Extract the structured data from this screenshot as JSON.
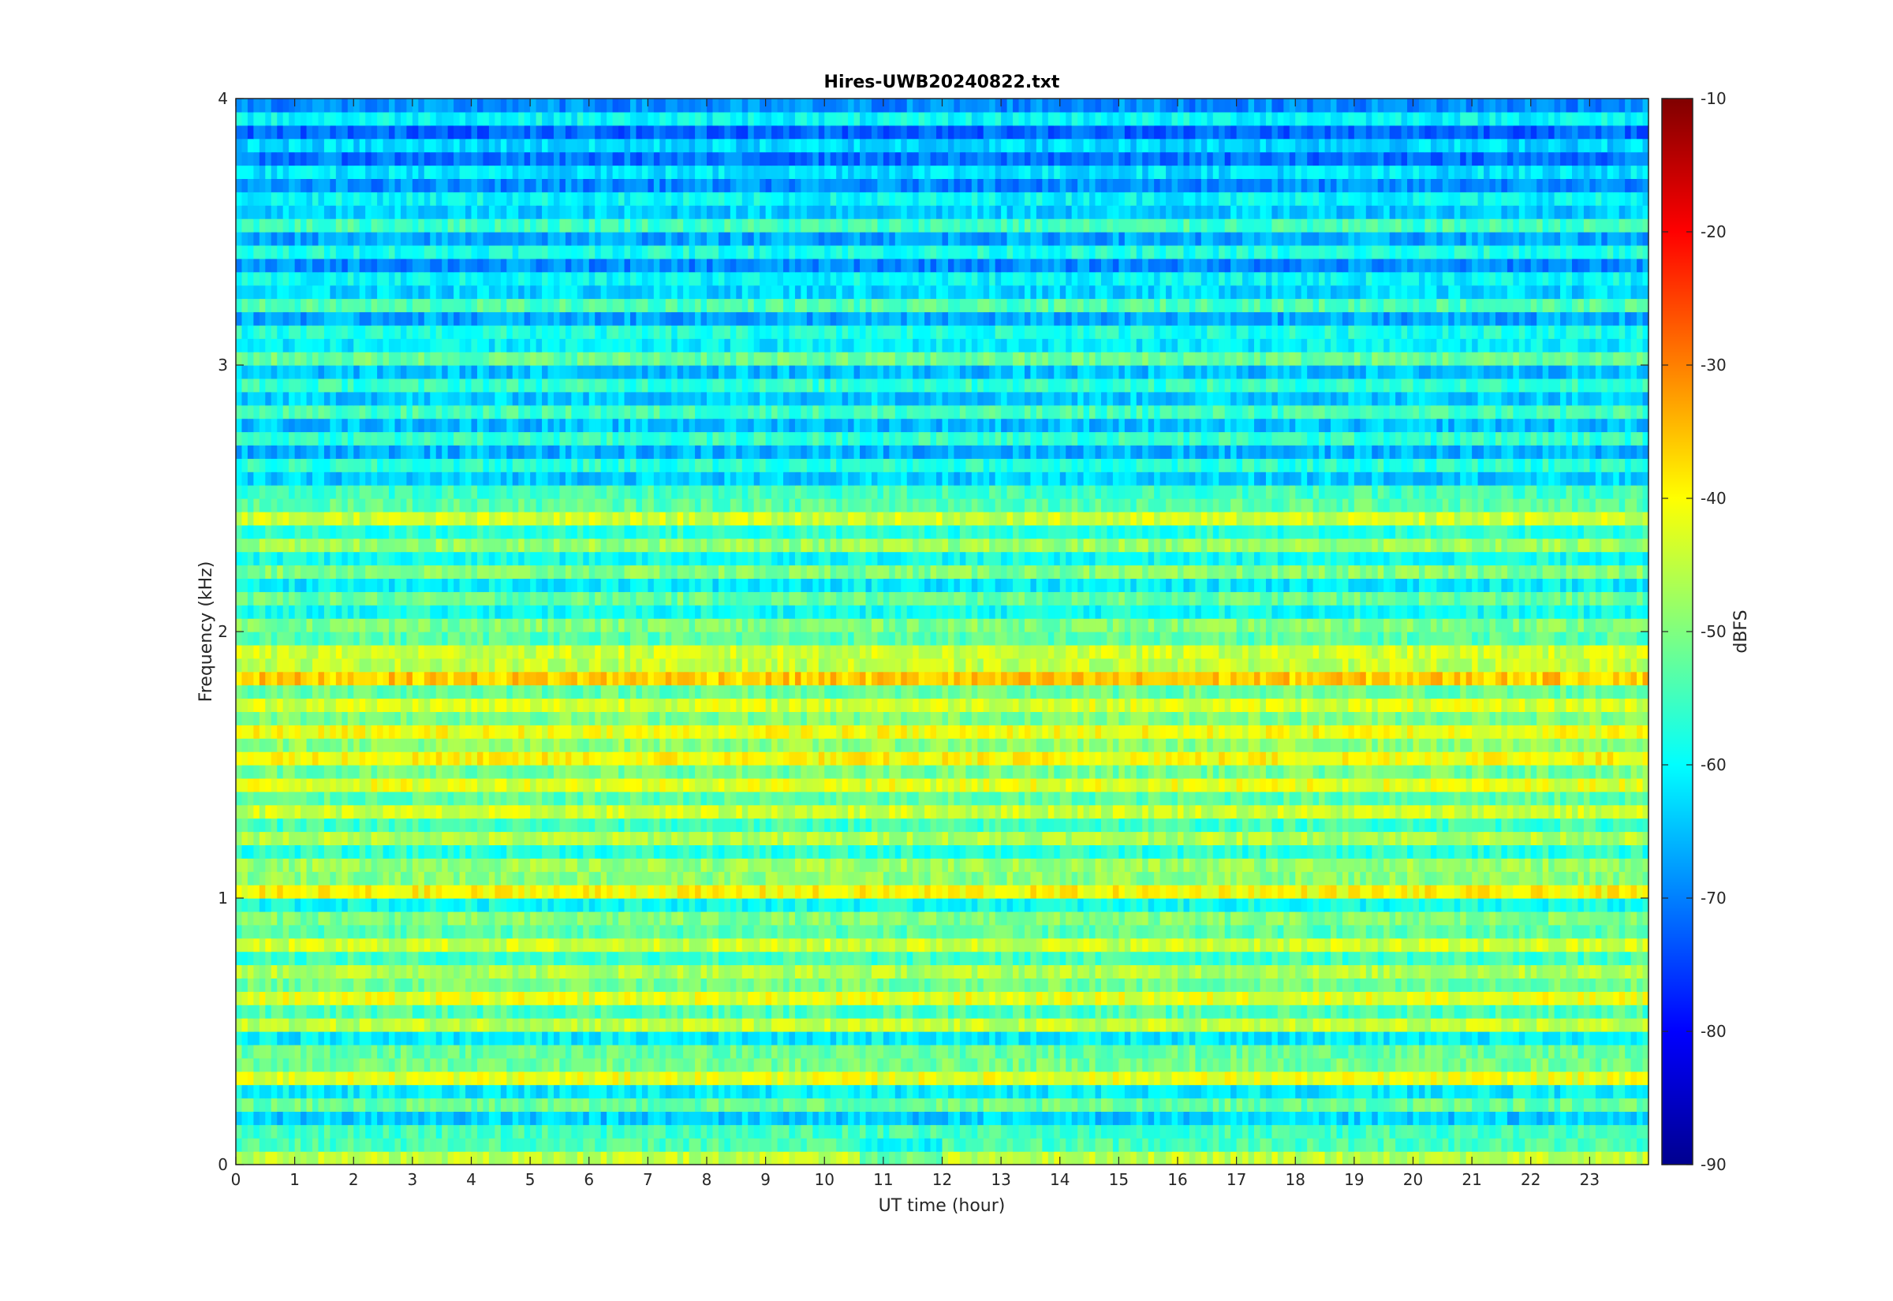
{
  "chart_data": {
    "type": "heatmap",
    "title": "Hires-UWB20240822.txt",
    "xlabel": "UT time (hour)",
    "ylabel": "Frequency (kHz)",
    "xlim": [
      0,
      24
    ],
    "ylim": [
      0,
      4
    ],
    "x_ticks": [
      "0",
      "1",
      "2",
      "3",
      "4",
      "5",
      "6",
      "7",
      "8",
      "9",
      "10",
      "11",
      "12",
      "13",
      "14",
      "15",
      "16",
      "17",
      "18",
      "19",
      "20",
      "21",
      "22",
      "23"
    ],
    "y_ticks": [
      "0",
      "1",
      "2",
      "3",
      "4"
    ],
    "colorbar": {
      "label": "dBFS",
      "range": [
        -90,
        -10
      ],
      "ticks": [
        "-10",
        "-20",
        "-30",
        "-40",
        "-50",
        "-60",
        "-70",
        "-80",
        "-90"
      ],
      "colormap": "jet"
    },
    "grid": false,
    "bands_khz": [
      {
        "f": 0.05,
        "level": -45
      },
      {
        "f": 0.15,
        "level": -55
      },
      {
        "f": 0.25,
        "level": -52
      },
      {
        "f": 0.35,
        "level": -42
      },
      {
        "f": 0.45,
        "level": -52
      },
      {
        "f": 0.55,
        "level": -45
      },
      {
        "f": 0.65,
        "level": -42
      },
      {
        "f": 0.75,
        "level": -46
      },
      {
        "f": 0.85,
        "level": -44
      },
      {
        "f": 0.95,
        "level": -50
      },
      {
        "f": 1.05,
        "level": -40
      },
      {
        "f": 1.15,
        "level": -48
      },
      {
        "f": 1.25,
        "level": -46
      },
      {
        "f": 1.35,
        "level": -44
      },
      {
        "f": 1.45,
        "level": -42
      },
      {
        "f": 1.55,
        "level": -40
      },
      {
        "f": 1.65,
        "level": -41
      },
      {
        "f": 1.75,
        "level": -43
      },
      {
        "f": 1.85,
        "level": -36
      },
      {
        "f": 1.95,
        "level": -44
      },
      {
        "f": 2.05,
        "level": -50
      },
      {
        "f": 2.15,
        "level": -52
      },
      {
        "f": 2.25,
        "level": -50
      },
      {
        "f": 2.35,
        "level": -48
      },
      {
        "f": 2.45,
        "level": -44
      },
      {
        "f": 2.55,
        "level": -55
      },
      {
        "f": 2.65,
        "level": -57
      },
      {
        "f": 2.75,
        "level": -56
      },
      {
        "f": 2.85,
        "level": -55
      },
      {
        "f": 2.95,
        "level": -56
      },
      {
        "f": 3.05,
        "level": -52
      },
      {
        "f": 3.15,
        "level": -58
      },
      {
        "f": 3.25,
        "level": -54
      },
      {
        "f": 3.35,
        "level": -60
      },
      {
        "f": 3.45,
        "level": -58
      },
      {
        "f": 3.55,
        "level": -55
      },
      {
        "f": 3.65,
        "level": -60
      },
      {
        "f": 3.75,
        "level": -62
      },
      {
        "f": 3.85,
        "level": -63
      },
      {
        "f": 3.95,
        "level": -60
      }
    ]
  }
}
